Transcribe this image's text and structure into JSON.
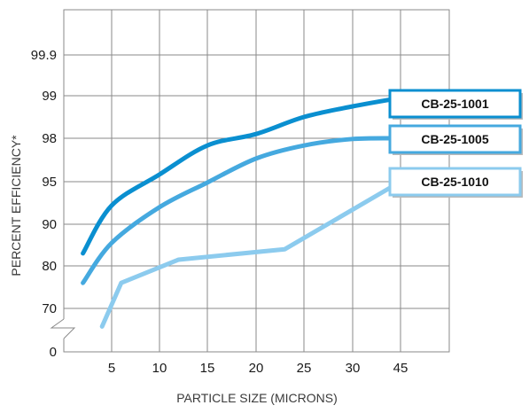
{
  "chart_data": {
    "type": "line",
    "title": "",
    "xlabel": "PARTICLE SIZE (MICRONS)",
    "ylabel": "PERCENT EFFICIENCY*",
    "x_ticks": [
      "5",
      "10",
      "15",
      "20",
      "25",
      "30",
      "45"
    ],
    "y_ticks": [
      "0",
      "70",
      "80",
      "90",
      "95",
      "98",
      "99",
      "99.9"
    ],
    "x_scale": "categorical-spaced",
    "y_scale": "non-linear (ordinal tick spacing)",
    "grid": true,
    "legend": "callout labels at line ends (right)",
    "series": [
      {
        "name": "CB-25-1001",
        "color": "#0a8fd0",
        "x": [
          2,
          5,
          10,
          15,
          20,
          25,
          30,
          45
        ],
        "y": [
          83,
          92.2,
          95.5,
          97.5,
          98.1,
          98.5,
          98.75,
          98.95
        ]
      },
      {
        "name": "CB-25-1005",
        "color": "#45a9df",
        "x": [
          2,
          5,
          10,
          15,
          20,
          25,
          30,
          45
        ],
        "y": [
          76,
          85.5,
          92,
          94.9,
          96.6,
          97.5,
          97.95,
          98
        ]
      },
      {
        "name": "CB-25-1010",
        "color": "#8ccbee",
        "x": [
          4,
          6,
          12,
          23,
          45
        ],
        "y": [
          64,
          76,
          81.5,
          84,
          95
        ]
      }
    ]
  }
}
